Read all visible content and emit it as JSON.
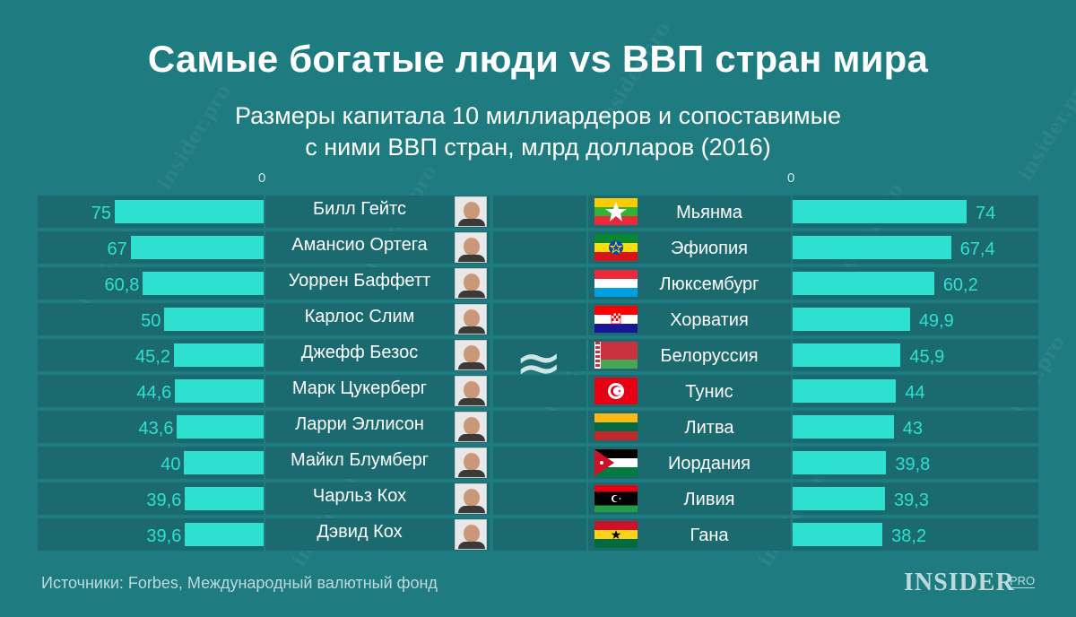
{
  "title": "Самые богатые люди vs ВВП стран мира",
  "subtitle_line1": "Размеры капитала 10 миллиардеров и сопоставимые",
  "subtitle_line2": "с ними ВВП стран, млрд долларов (2016)",
  "axis_zero": "0",
  "approx_symbol": "≈",
  "source": "Источники: Forbes, Международный валютный фонд",
  "logo": {
    "main": "INSIDER",
    "suffix": "PRO"
  },
  "watermark": "insider.pro",
  "colors": {
    "background": "#1e7b80",
    "band": "#1b6a6f",
    "bar": "#2ee0cf",
    "text": "#ffffff"
  },
  "chart_data": [
    {
      "type": "bar",
      "orientation": "horizontal",
      "direction": "right-to-left",
      "categories": [
        "Билл Гейтс",
        "Амансио Ортега",
        "Уоррен Баффетт",
        "Карлос Слим",
        "Джефф Безос",
        "Марк Цукерберг",
        "Ларри Эллисон",
        "Майкл Блумберг",
        "Чарльз Кох",
        "Дэвид Кох"
      ],
      "values": [
        75,
        67,
        60.8,
        50,
        45.2,
        44.6,
        43.6,
        40,
        39.6,
        39.6
      ],
      "value_labels": [
        "75",
        "67",
        "60,8",
        "50",
        "45,2",
        "44,6",
        "43,6",
        "40",
        "39,6",
        "39,6"
      ],
      "xlim": [
        0,
        75
      ]
    },
    {
      "type": "bar",
      "orientation": "horizontal",
      "direction": "left-to-right",
      "categories": [
        "Мьянма",
        "Эфиопия",
        "Люксембург",
        "Хорватия",
        "Белоруссия",
        "Тунис",
        "Литва",
        "Иордания",
        "Ливия",
        "Гана"
      ],
      "values": [
        74,
        67.4,
        60.2,
        49.9,
        45.9,
        44,
        43,
        39.8,
        39.3,
        38.2
      ],
      "value_labels": [
        "74",
        "67,4",
        "60,2",
        "49,9",
        "45,9",
        "44",
        "43",
        "39,8",
        "39,3",
        "38,2"
      ],
      "flags": [
        "myanmar-flag",
        "ethiopia-flag",
        "luxembourg-flag",
        "croatia-flag",
        "belarus-flag",
        "tunisia-flag",
        "lithuania-flag",
        "jordan-flag",
        "libya-flag",
        "ghana-flag"
      ],
      "xlim": [
        0,
        74
      ]
    }
  ]
}
